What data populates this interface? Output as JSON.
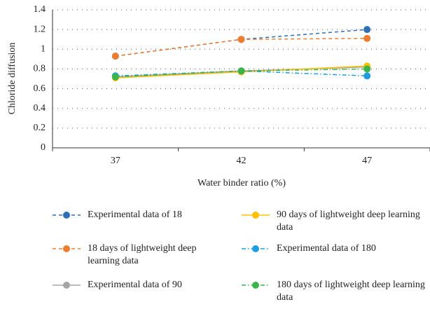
{
  "chart_data": {
    "type": "line",
    "categories": [
      "37",
      "42",
      "47"
    ],
    "x_label": "Water binder ratio (%)",
    "y_label": "Chloride diffusion",
    "ylim": [
      0,
      1.4
    ],
    "yticks": [
      0,
      0.2,
      0.4,
      0.6,
      0.8,
      1,
      1.2,
      1.4
    ],
    "grid": true,
    "series": [
      {
        "name": "Experimental data of 18",
        "color": "#2e6fb5",
        "line_style": "dashed",
        "values": [
          0.93,
          1.1,
          1.2
        ]
      },
      {
        "name": "18 days of lightweight deep learning data",
        "color": "#ed7d31",
        "line_style": "dashed",
        "values": [
          0.93,
          1.1,
          1.11
        ]
      },
      {
        "name": "Experimental data of 90",
        "color": "#a5a5a5",
        "line_style": "solid",
        "values": [
          0.72,
          0.78,
          0.82
        ]
      },
      {
        "name": "90 days of lightweight deep learning data",
        "color": "#ffc000",
        "line_style": "solid",
        "values": [
          0.71,
          0.77,
          0.83
        ]
      },
      {
        "name": "Experimental data of 180",
        "color": "#1f9de0",
        "line_style": "dashdot",
        "values": [
          0.73,
          0.78,
          0.73
        ]
      },
      {
        "name": "180 days of lightweight deep learning data",
        "color": "#3cb44b",
        "line_style": "dashdot",
        "values": [
          0.72,
          0.78,
          0.8
        ]
      }
    ]
  }
}
